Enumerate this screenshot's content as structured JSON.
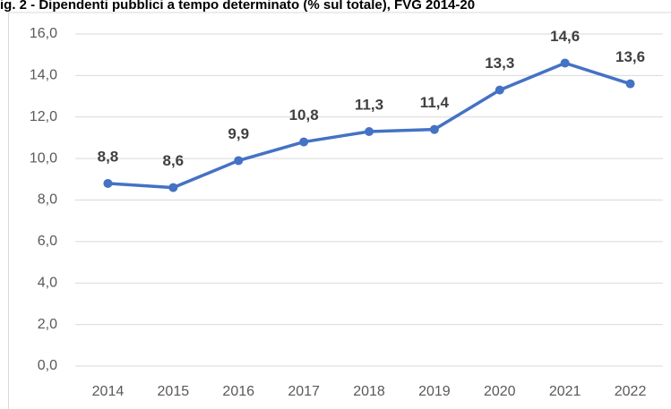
{
  "chart_data": {
    "type": "line",
    "title": "ig. 2 - Dipendenti pubblici a tempo determinato (% sul totale), FVG 2014-20",
    "categories": [
      "2014",
      "2015",
      "2016",
      "2017",
      "2018",
      "2019",
      "2020",
      "2021",
      "2022"
    ],
    "series": [
      {
        "name": "Dipendenti pubblici a tempo determinato",
        "color": "#4472c4",
        "values": [
          8.8,
          8.6,
          9.9,
          10.8,
          11.3,
          11.4,
          13.3,
          14.6,
          13.6
        ],
        "value_labels": [
          "8,8",
          "8,6",
          "9,9",
          "10,8",
          "11,3",
          "11,4",
          "13,3",
          "14,6",
          "13,6"
        ]
      }
    ],
    "ylim": [
      0,
      16
    ],
    "yticks": [
      {
        "value": 0,
        "label": "0,0"
      },
      {
        "value": 2,
        "label": "2,0"
      },
      {
        "value": 4,
        "label": "4,0"
      },
      {
        "value": 6,
        "label": "6,0"
      },
      {
        "value": 8,
        "label": "8,0"
      },
      {
        "value": 10,
        "label": "10,0"
      },
      {
        "value": 12,
        "label": "12,0"
      },
      {
        "value": 14,
        "label": "14,0"
      },
      {
        "value": 16,
        "label": "16,0"
      }
    ],
    "grid": true
  }
}
